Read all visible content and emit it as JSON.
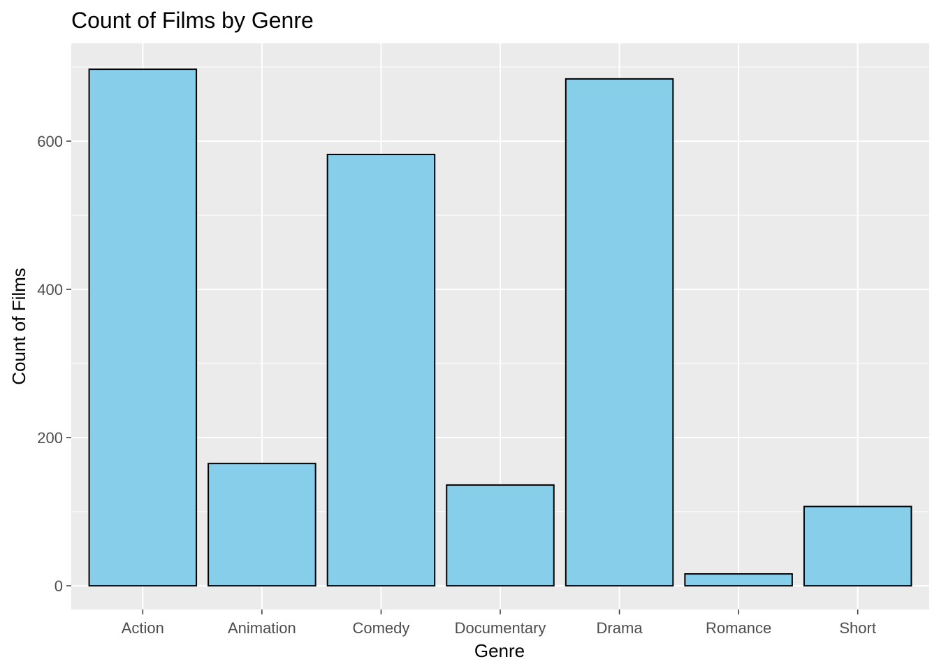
{
  "chart_data": {
    "type": "bar",
    "title": "Count of Films by Genre",
    "xlabel": "Genre",
    "ylabel": "Count of Films",
    "categories": [
      "Action",
      "Animation",
      "Comedy",
      "Documentary",
      "Drama",
      "Romance",
      "Short"
    ],
    "values": [
      697,
      165,
      582,
      136,
      684,
      16,
      107
    ],
    "ylim": [
      -32,
      732
    ],
    "yticks": [
      0,
      200,
      400,
      600
    ],
    "ytick_labels": [
      "0",
      "200",
      "400",
      "600"
    ],
    "grid": true,
    "colors": {
      "bar_fill": "#87ceeb",
      "bar_stroke": "#000000",
      "panel_background": "#ebebeb",
      "grid_major": "#ffffff",
      "tick_text": "#4d4d4d"
    }
  }
}
